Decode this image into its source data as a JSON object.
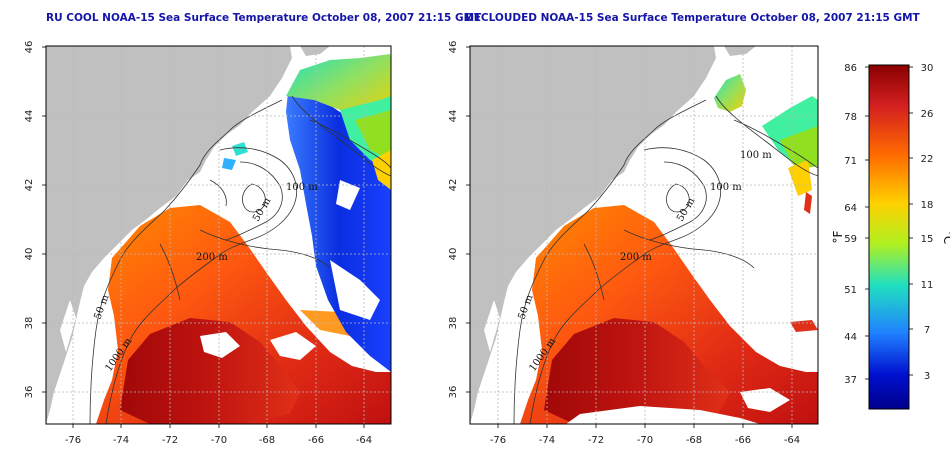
{
  "panels": [
    {
      "title": "RU COOL NOAA-15 Sea Surface Temperature October 08, 2007 21:15 GMT",
      "y_ticks": [
        "46",
        "44",
        "42",
        "40",
        "38",
        "36"
      ],
      "x_ticks": [
        "-76",
        "-74",
        "-72",
        "-70",
        "-68",
        "-66",
        "-64"
      ],
      "contour_labels": [
        "100 m",
        "50 m",
        "200 m",
        "50 m",
        "1000 m"
      ]
    },
    {
      "title": "DECLOUDED NOAA-15 Sea Surface Temperature October 08, 2007 21:15 GMT",
      "y_ticks": [
        "46",
        "44",
        "42",
        "40",
        "38",
        "36"
      ],
      "x_ticks": [
        "-76",
        "-74",
        "-72",
        "-70",
        "-68",
        "-66",
        "-64"
      ],
      "contour_labels": [
        "100 m",
        "100 m",
        "50 m",
        "200 m",
        "50 m",
        "1000 m"
      ]
    }
  ],
  "colorbar": {
    "fahrenheit_ticks": [
      "86",
      "78",
      "71",
      "64",
      "59",
      "51",
      "44",
      "37"
    ],
    "celsius_ticks": [
      "30",
      "26",
      "22",
      "18",
      "15",
      "11",
      "7",
      "3"
    ],
    "fahrenheit_unit": "°F",
    "celsius_unit": "°C",
    "colors": [
      "#8b0000",
      "#d42020",
      "#ff6a00",
      "#ffd000",
      "#b0f020",
      "#20e0c0",
      "#2080ff",
      "#0010d0",
      "#00008b"
    ]
  },
  "legend_colors": {
    "land": "#c0c0c0",
    "cloud": "#ffffff",
    "grid": "#b8b8b8"
  }
}
